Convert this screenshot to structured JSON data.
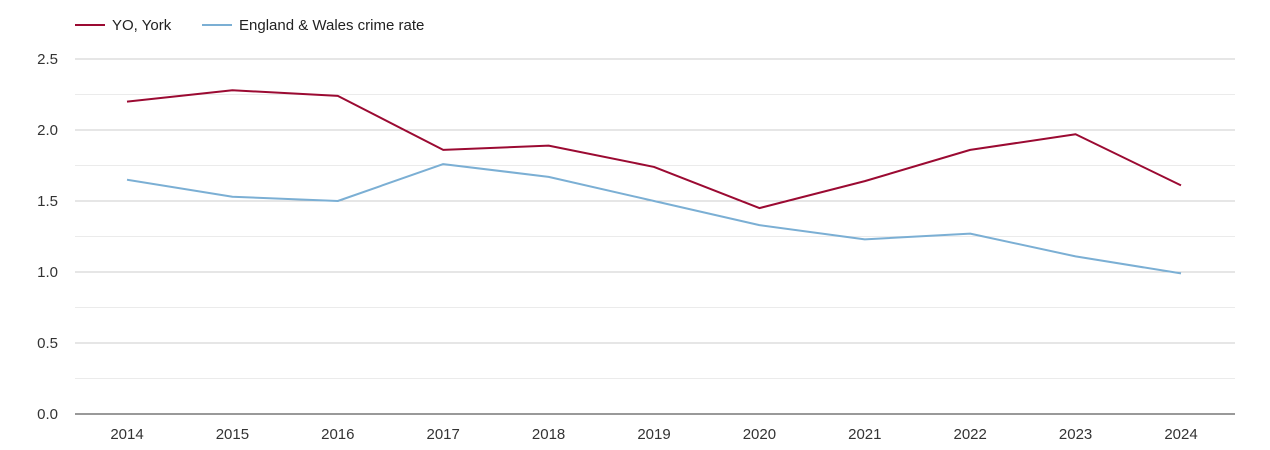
{
  "chart_data": {
    "type": "line",
    "title": "",
    "xlabel": "",
    "ylabel": "",
    "x": [
      "2014",
      "2015",
      "2016",
      "2017",
      "2018",
      "2019",
      "2020",
      "2021",
      "2022",
      "2023",
      "2024"
    ],
    "ylim": [
      0,
      2.5
    ],
    "yticks": [
      "0.0",
      "0.5",
      "1.0",
      "1.5",
      "2.0",
      "2.5"
    ],
    "grid": true,
    "legend_position": "top-left",
    "series": [
      {
        "name": "YO, York",
        "color": "#9b0a32",
        "values": [
          2.2,
          2.28,
          2.24,
          1.86,
          1.89,
          1.74,
          1.45,
          1.64,
          1.86,
          1.97,
          1.61
        ]
      },
      {
        "name": "England & Wales crime rate",
        "color": "#7bafd4",
        "values": [
          1.65,
          1.53,
          1.5,
          1.76,
          1.67,
          1.5,
          1.33,
          1.23,
          1.27,
          1.11,
          0.99
        ]
      }
    ]
  }
}
